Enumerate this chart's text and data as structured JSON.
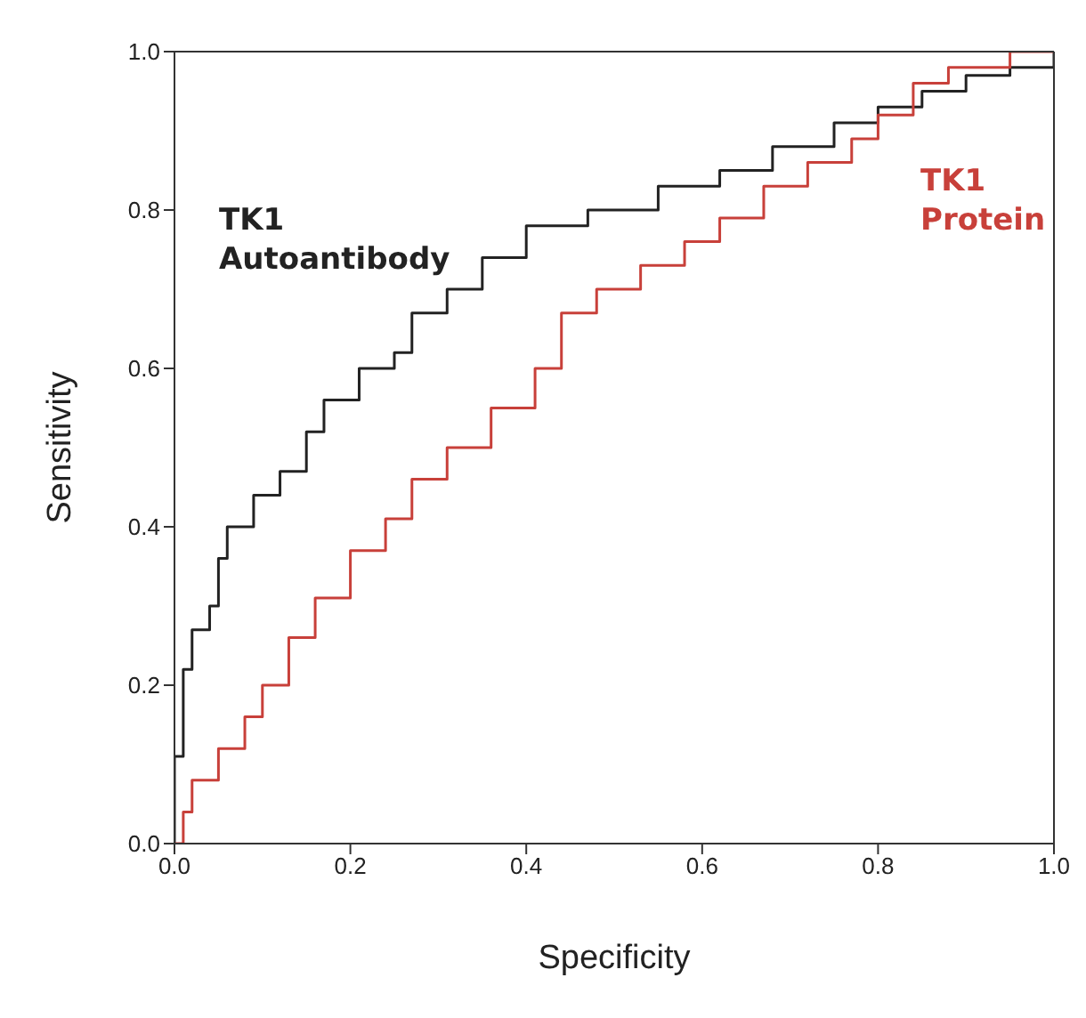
{
  "chart_data": {
    "type": "step",
    "xlabel": "Specificity",
    "ylabel": "Sensitivity",
    "xlim": [
      0,
      1
    ],
    "ylim": [
      0,
      1
    ],
    "xticks": [
      {
        "value": 0,
        "label": "0.0"
      },
      0.2,
      0.4,
      0.6,
      0.8,
      {
        "value": 1,
        "label": "1.0"
      }
    ],
    "yticks": [
      {
        "value": 0,
        "label": "0.0"
      },
      0.2,
      0.4,
      0.6,
      0.8,
      {
        "value": 1,
        "label": "1.0"
      }
    ],
    "grid": false,
    "legend": false,
    "series": [
      {
        "name": "TK1 Autoantibody",
        "color": "#222222",
        "x": [
          0,
          0,
          0.01,
          0.01,
          0.02,
          0.04,
          0.05,
          0.06,
          0.09,
          0.12,
          0.15,
          0.17,
          0.21,
          0.25,
          0.27,
          0.31,
          0.35,
          0.4,
          0.47,
          0.55,
          0.62,
          0.68,
          0.75,
          0.8,
          0.85,
          0.9,
          0.95,
          1
        ],
        "values": [
          0,
          0.11,
          0.11,
          0.22,
          0.27,
          0.3,
          0.36,
          0.4,
          0.44,
          0.47,
          0.52,
          0.56,
          0.6,
          0.62,
          0.67,
          0.7,
          0.74,
          0.78,
          0.8,
          0.83,
          0.85,
          0.88,
          0.91,
          0.93,
          0.95,
          0.97,
          0.98,
          1
        ]
      },
      {
        "name": "TK1 Protein",
        "color": "#c8403a",
        "x": [
          0,
          0.01,
          0.02,
          0.05,
          0.08,
          0.1,
          0.13,
          0.16,
          0.2,
          0.24,
          0.27,
          0.31,
          0.36,
          0.41,
          0.44,
          0.48,
          0.53,
          0.58,
          0.62,
          0.67,
          0.72,
          0.77,
          0.8,
          0.84,
          0.88,
          0.95,
          1
        ],
        "values": [
          0,
          0.04,
          0.08,
          0.12,
          0.16,
          0.2,
          0.26,
          0.31,
          0.37,
          0.41,
          0.46,
          0.5,
          0.55,
          0.6,
          0.67,
          0.7,
          0.73,
          0.76,
          0.79,
          0.83,
          0.86,
          0.89,
          0.92,
          0.96,
          0.98,
          1,
          1
        ]
      }
    ]
  }
}
